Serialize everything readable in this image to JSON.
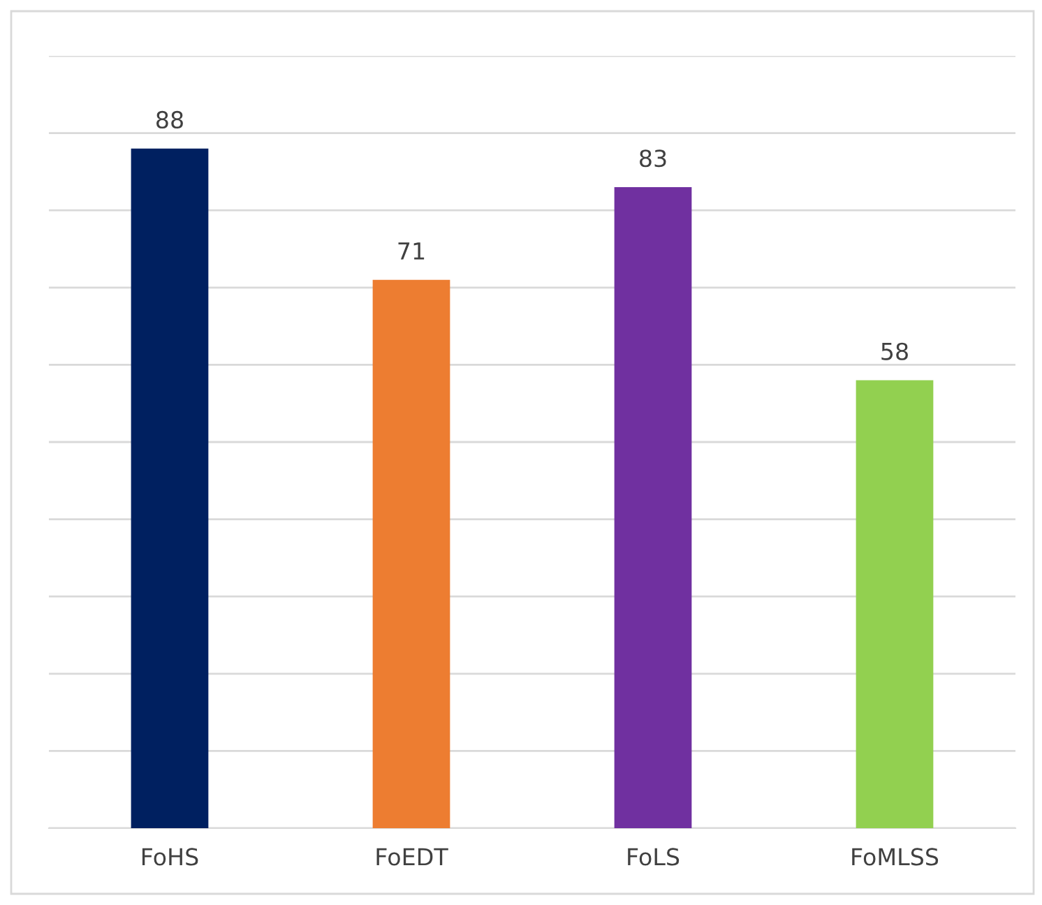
{
  "chart_data": {
    "type": "bar",
    "categories": [
      "FoHS",
      "FoEDT",
      "FoLS",
      "FoMLSS"
    ],
    "values": [
      88,
      71,
      83,
      58
    ],
    "colors": [
      "#002060",
      "#ed7d31",
      "#7030a0",
      "#92d050"
    ],
    "ylim": [
      0,
      100
    ],
    "yticks": [
      {
        "value": 0,
        "label": null
      },
      {
        "value": 10,
        "label": null
      },
      {
        "value": 20,
        "label": null
      },
      {
        "value": 30,
        "label": null
      },
      {
        "value": 40,
        "label": null
      },
      {
        "value": 50,
        "label": null
      },
      {
        "value": 60,
        "label": null
      },
      {
        "value": 70,
        "label": null
      },
      {
        "value": 80,
        "label": null
      },
      {
        "value": 90,
        "label": null
      },
      {
        "value": 100,
        "label": null
      }
    ],
    "tick_labels": "x",
    "grid": "y",
    "data_labels": true
  }
}
